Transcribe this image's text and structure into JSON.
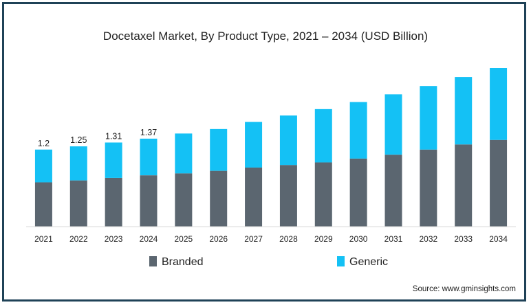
{
  "chart_data": {
    "type": "bar",
    "stacked": true,
    "title": "Docetaxel Market, By Product Type, 2021 – 2034 (USD Billion)",
    "xlabel": "",
    "ylabel": "",
    "categories": [
      "2021",
      "2022",
      "2023",
      "2024",
      "2025",
      "2026",
      "2027",
      "2028",
      "2029",
      "2030",
      "2031",
      "2032",
      "2033",
      "2034"
    ],
    "series": [
      {
        "name": "Branded",
        "color": "#5b6670",
        "values": [
          0.69,
          0.72,
          0.76,
          0.8,
          0.83,
          0.87,
          0.92,
          0.96,
          1.0,
          1.06,
          1.12,
          1.2,
          1.28,
          1.35
        ]
      },
      {
        "name": "Generic",
        "color": "#14c1f5",
        "values": [
          0.51,
          0.53,
          0.55,
          0.57,
          0.62,
          0.65,
          0.71,
          0.77,
          0.83,
          0.88,
          0.94,
          0.99,
          1.05,
          1.12
        ]
      }
    ],
    "data_labels": [
      "1.2",
      "1.25",
      "1.31",
      "1.37",
      "",
      "",
      "",
      "",
      "",
      "",
      "",
      "",
      "",
      ""
    ],
    "ylim": [
      0,
      2.6
    ],
    "grid": false,
    "legend_position": "bottom"
  },
  "source": "Source: www.gminsights.com"
}
